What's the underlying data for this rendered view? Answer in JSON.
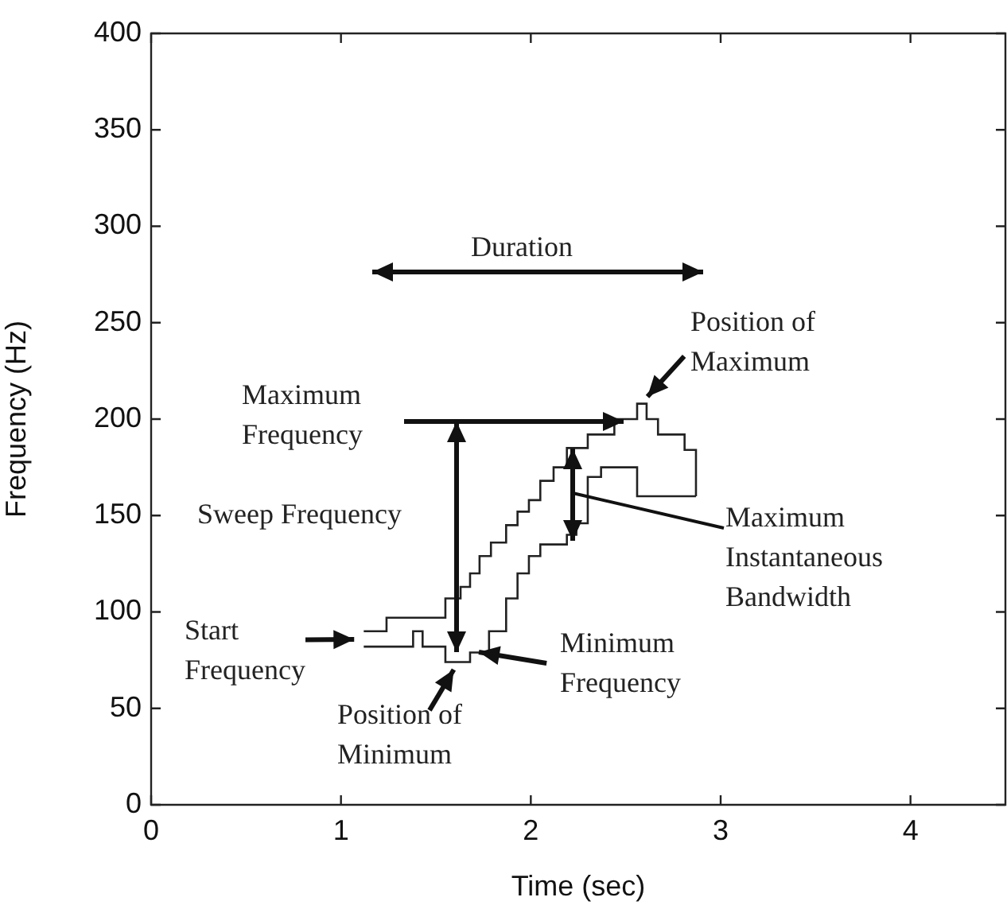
{
  "chart_data": {
    "type": "step",
    "xlabel": "Time (sec)",
    "ylabel": "Frequency (Hz)",
    "xlim": [
      0,
      4.5
    ],
    "xticks": [
      0,
      1,
      2,
      3,
      4
    ],
    "ylim": [
      0,
      400
    ],
    "yticks": [
      0,
      50,
      100,
      150,
      200,
      250,
      300,
      350,
      400
    ],
    "grid": false,
    "legend": false,
    "marker": "none",
    "series": [
      {
        "color": "#222222",
        "x": [
          1.12,
          1.24,
          1.55,
          1.63,
          1.68,
          1.73,
          1.79,
          1.87,
          1.93,
          1.99,
          2.05,
          2.12,
          2.19,
          2.3,
          2.44,
          2.56,
          2.61,
          2.67,
          2.81,
          2.87
        ],
        "values": [
          90,
          97,
          107,
          113,
          120,
          129,
          136,
          145,
          152,
          158,
          168,
          175,
          185,
          192,
          200,
          208,
          200,
          192,
          184,
          160
        ]
      },
      {
        "color": "#222222",
        "x": [
          1.12,
          1.38,
          1.43,
          1.55,
          1.68,
          1.78,
          1.87,
          1.93,
          1.99,
          2.05,
          2.19,
          2.24,
          2.3,
          2.37,
          2.56,
          2.87
        ],
        "values": [
          82,
          90,
          82,
          74,
          79,
          90,
          107,
          120,
          129,
          135,
          140,
          146,
          170,
          175,
          160,
          160
        ]
      }
    ],
    "annotations": [
      "Duration",
      {
        "text": "Position of\nMaximum",
        "x": 2.58,
        "y": 208
      },
      "Maximum\nFrequency",
      "Sweep Frequency",
      {
        "text": "Start\nFrequency",
        "x": 1.12,
        "y": 86
      },
      {
        "text": "Position of\nMinimum",
        "x": 1.62,
        "y": 74
      },
      {
        "text": "Minimum\nFrequency",
        "x": 1.68,
        "y": 80
      },
      "Maximum\nInstantaneous\nBandwidth"
    ]
  }
}
